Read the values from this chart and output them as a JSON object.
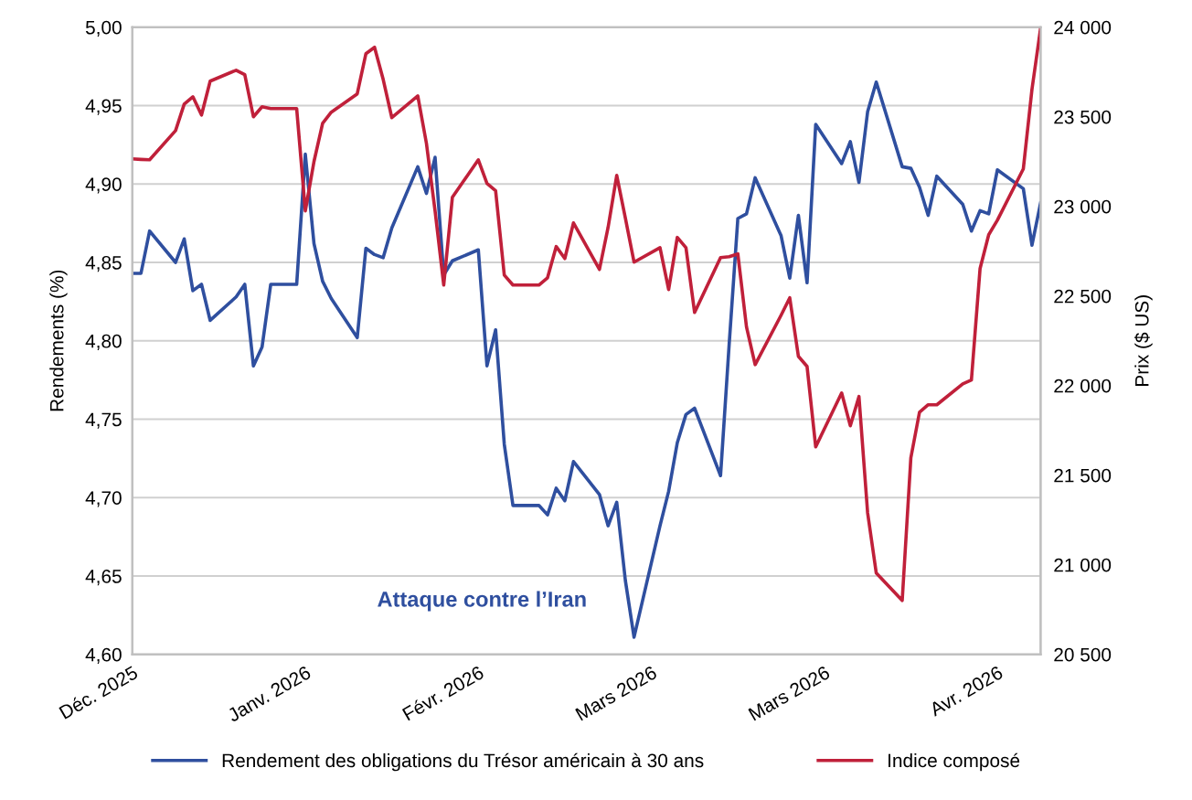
{
  "chart_data": {
    "type": "line",
    "ylabel": "Rendements (%)",
    "y2label": "Prix ($ US)",
    "x": [
      "2025-12-31",
      "2026-01-01",
      "2026-01-02",
      "2026-01-05",
      "2026-01-06",
      "2026-01-07",
      "2026-01-08",
      "2026-01-09",
      "2026-01-12",
      "2026-01-13",
      "2026-01-14",
      "2026-01-15",
      "2026-01-16",
      "2026-01-19",
      "2026-01-20",
      "2026-01-21",
      "2026-01-22",
      "2026-01-23",
      "2026-01-26",
      "2026-01-27",
      "2026-01-28",
      "2026-01-29",
      "2026-01-30",
      "2026-02-02",
      "2026-02-03",
      "2026-02-04",
      "2026-02-05",
      "2026-02-06",
      "2026-02-09",
      "2026-02-10",
      "2026-02-11",
      "2026-02-12",
      "2026-02-13",
      "2026-02-16",
      "2026-02-17",
      "2026-02-18",
      "2026-02-19",
      "2026-02-20",
      "2026-02-23",
      "2026-02-24",
      "2026-02-25",
      "2026-02-26",
      "2026-02-27",
      "2026-03-02",
      "2026-03-03",
      "2026-03-04",
      "2026-03-05",
      "2026-03-06",
      "2026-03-09",
      "2026-03-10",
      "2026-03-11",
      "2026-03-12",
      "2026-03-13",
      "2026-03-16",
      "2026-03-17",
      "2026-03-18",
      "2026-03-19",
      "2026-03-20",
      "2026-03-23",
      "2026-03-24",
      "2026-03-25",
      "2026-03-26",
      "2026-03-27",
      "2026-03-30",
      "2026-03-31",
      "2026-04-01",
      "2026-04-02",
      "2026-04-03",
      "2026-04-06",
      "2026-04-07",
      "2026-04-08",
      "2026-04-09",
      "2026-04-10",
      "2026-04-13",
      "2026-04-14",
      "2026-04-15"
    ],
    "series": [
      {
        "name": "Rendement des obligations du Trésor américain à 30 ans",
        "color": "#2f4f9f",
        "values": [
          4.843,
          4.843,
          4.87,
          4.85,
          4.865,
          4.832,
          4.836,
          4.813,
          4.828,
          4.836,
          4.784,
          4.796,
          4.836,
          4.836,
          4.919,
          4.862,
          4.838,
          4.827,
          4.802,
          4.859,
          4.855,
          4.853,
          4.872,
          4.911,
          4.894,
          4.917,
          4.842,
          4.851,
          4.858,
          4.784,
          4.807,
          4.734,
          4.695,
          4.695,
          4.689,
          4.706,
          4.698,
          4.723,
          4.702,
          4.682,
          4.697,
          4.647,
          4.611,
          4.682,
          4.704,
          4.735,
          4.753,
          4.757,
          4.714,
          4.798,
          4.878,
          4.881,
          4.904,
          4.867,
          4.84,
          4.88,
          4.837,
          4.938,
          4.913,
          4.927,
          4.901,
          4.946,
          4.965,
          4.911,
          4.91,
          4.898,
          4.88,
          4.905,
          4.887,
          4.87,
          4.883,
          4.881,
          4.909,
          4.897,
          4.861,
          4.888
        ]
      },
      {
        "name": "Indice composé",
        "color": "#c0203a",
        "axis": "y2",
        "values": [
          23265,
          23262,
          23260,
          23423,
          23571,
          23612,
          23510,
          23699,
          23760,
          23735,
          23500,
          23556,
          23546,
          23546,
          22975,
          23250,
          23464,
          23526,
          23628,
          23852,
          23888,
          23709,
          23495,
          23617,
          23352,
          22975,
          22561,
          23051,
          23260,
          23128,
          23087,
          22617,
          22561,
          22561,
          22602,
          22776,
          22709,
          22908,
          22648,
          22883,
          23173,
          22934,
          22689,
          22770,
          22536,
          22827,
          22770,
          22408,
          22714,
          22719,
          22735,
          22327,
          22117,
          22393,
          22490,
          22163,
          22107,
          21658,
          21959,
          21776,
          21939,
          21291,
          20954,
          20801,
          21597,
          21852,
          21893,
          21893,
          22010,
          22031,
          22653,
          22842,
          22923,
          23209,
          23653,
          23995
        ]
      }
    ],
    "xlim": [
      "2025-12-31",
      "2026-04-15"
    ],
    "xticks": [
      {
        "value": "2025-12-31",
        "label": "Déc. 2025"
      },
      {
        "value": "2026-01-20",
        "label": "Janv. 2026"
      },
      {
        "value": "2026-02-09",
        "label": "Févr. 2026"
      },
      {
        "value": "2026-03-01",
        "label": "Mars 2026"
      },
      {
        "value": "2026-03-21",
        "label": "Mars 2026"
      },
      {
        "value": "2026-04-10",
        "label": "Avr. 2026"
      }
    ],
    "ylim": [
      4.6,
      5.0
    ],
    "yticks": [
      {
        "value": 4.6,
        "label": "4,60"
      },
      {
        "value": 4.65,
        "label": "4,65"
      },
      {
        "value": 4.7,
        "label": "4,70"
      },
      {
        "value": 4.75,
        "label": "4,75"
      },
      {
        "value": 4.8,
        "label": "4,80"
      },
      {
        "value": 4.85,
        "label": "4,85"
      },
      {
        "value": 4.9,
        "label": "4,90"
      },
      {
        "value": 4.95,
        "label": "4,95"
      },
      {
        "value": 5.0,
        "label": "5,00"
      }
    ],
    "y2lim": [
      20500,
      24000
    ],
    "y2ticks": [
      {
        "value": 20500,
        "label": "20 500"
      },
      {
        "value": 21000,
        "label": "21 000"
      },
      {
        "value": 21500,
        "label": "21 500"
      },
      {
        "value": 22000,
        "label": "22 000"
      },
      {
        "value": 22500,
        "label": "22 500"
      },
      {
        "value": 23000,
        "label": "23 000"
      },
      {
        "value": 23500,
        "label": "23 500"
      },
      {
        "value": 24000,
        "label": "24 000"
      }
    ],
    "annotations": [
      "Attaque contre l’Iran"
    ],
    "grid": "y",
    "legend": "bottom"
  }
}
